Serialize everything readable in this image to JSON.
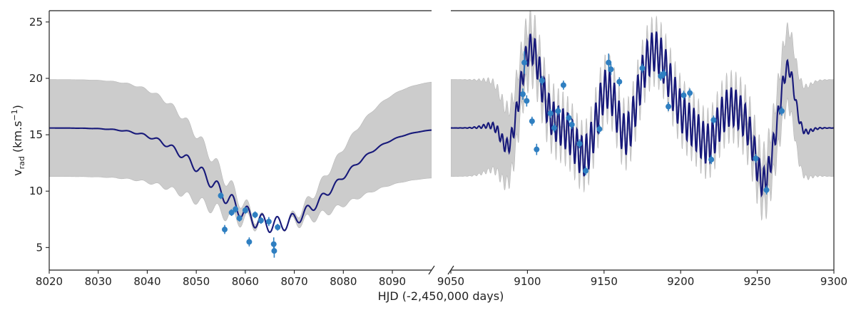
{
  "chart_data": {
    "type": "line",
    "xlabel": "HJD (-2,450,000 days)",
    "ylabel_main": "v",
    "ylabel_sub": "rad",
    "ylabel_unit_open": " (km.s",
    "ylabel_unit_exp": "−1",
    "ylabel_unit_close": ")",
    "ylim": [
      3,
      26
    ],
    "yticks": [
      5,
      10,
      15,
      20,
      25
    ],
    "colors": {
      "model_line": "#17197a",
      "band": "#cccccc",
      "band_edge": "#b8b8b8",
      "points": "#2f7fc1",
      "axes": "#222222"
    },
    "panels": [
      {
        "name": "left",
        "xlim": [
          8020,
          8098
        ],
        "xticks": [
          8020,
          8030,
          8040,
          8050,
          8060,
          8070,
          8080,
          8090
        ],
        "observations": [
          {
            "x": 8055.0,
            "y": 9.6,
            "err": 0.3
          },
          {
            "x": 8055.8,
            "y": 6.6,
            "err": 0.4
          },
          {
            "x": 8057.2,
            "y": 8.1,
            "err": 0.3
          },
          {
            "x": 8058.0,
            "y": 8.4,
            "err": 0.3
          },
          {
            "x": 8058.8,
            "y": 7.6,
            "err": 0.3
          },
          {
            "x": 8060.0,
            "y": 8.3,
            "err": 0.3
          },
          {
            "x": 8060.8,
            "y": 5.5,
            "err": 0.4
          },
          {
            "x": 8062.0,
            "y": 7.9,
            "err": 0.3
          },
          {
            "x": 8063.2,
            "y": 7.4,
            "err": 0.3
          },
          {
            "x": 8064.8,
            "y": 7.3,
            "err": 0.4
          },
          {
            "x": 8065.8,
            "y": 5.3,
            "err": 0.6
          },
          {
            "x": 8065.9,
            "y": 4.7,
            "err": 0.6
          },
          {
            "x": 8066.6,
            "y": 6.8,
            "err": 0.3
          }
        ]
      },
      {
        "name": "right",
        "xlim": [
          9050,
          9300
        ],
        "xticks": [
          9050,
          9100,
          9150,
          9200,
          9250,
          9300
        ],
        "observations": [
          {
            "x": 9097.0,
            "y": 18.6,
            "err": 0.5
          },
          {
            "x": 9098.0,
            "y": 21.4,
            "err": 1.0
          },
          {
            "x": 9099.5,
            "y": 18.0,
            "err": 0.5
          },
          {
            "x": 9103.0,
            "y": 16.2,
            "err": 0.4
          },
          {
            "x": 9106.0,
            "y": 13.7,
            "err": 0.5
          },
          {
            "x": 9109.5,
            "y": 19.8,
            "err": 0.4
          },
          {
            "x": 9115.0,
            "y": 16.9,
            "err": 0.4
          },
          {
            "x": 9117.5,
            "y": 15.6,
            "err": 0.4
          },
          {
            "x": 9120.0,
            "y": 17.1,
            "err": 0.4
          },
          {
            "x": 9123.5,
            "y": 19.4,
            "err": 0.4
          },
          {
            "x": 9127.0,
            "y": 16.5,
            "err": 0.4
          },
          {
            "x": 9129.0,
            "y": 15.9,
            "err": 0.4
          },
          {
            "x": 9134.0,
            "y": 14.2,
            "err": 0.4
          },
          {
            "x": 9138.0,
            "y": 11.8,
            "err": 0.4
          },
          {
            "x": 9147.0,
            "y": 15.5,
            "err": 0.4
          },
          {
            "x": 9153.0,
            "y": 21.4,
            "err": 0.8
          },
          {
            "x": 9154.5,
            "y": 20.8,
            "err": 0.5
          },
          {
            "x": 9160.0,
            "y": 19.7,
            "err": 0.4
          },
          {
            "x": 9175.0,
            "y": 20.9,
            "err": 0.4
          },
          {
            "x": 9187.0,
            "y": 20.2,
            "err": 0.4
          },
          {
            "x": 9189.0,
            "y": 20.4,
            "err": 0.4
          },
          {
            "x": 9192.0,
            "y": 17.5,
            "err": 0.4
          },
          {
            "x": 9202.0,
            "y": 18.5,
            "err": 0.4
          },
          {
            "x": 9206.0,
            "y": 18.7,
            "err": 0.4
          },
          {
            "x": 9220.0,
            "y": 12.8,
            "err": 0.4
          },
          {
            "x": 9221.5,
            "y": 16.3,
            "err": 0.4
          },
          {
            "x": 9249.0,
            "y": 12.9,
            "err": 0.4
          },
          {
            "x": 9256.0,
            "y": 10.1,
            "err": 0.4
          },
          {
            "x": 9266.0,
            "y": 17.1,
            "err": 0.4
          }
        ]
      }
    ]
  }
}
